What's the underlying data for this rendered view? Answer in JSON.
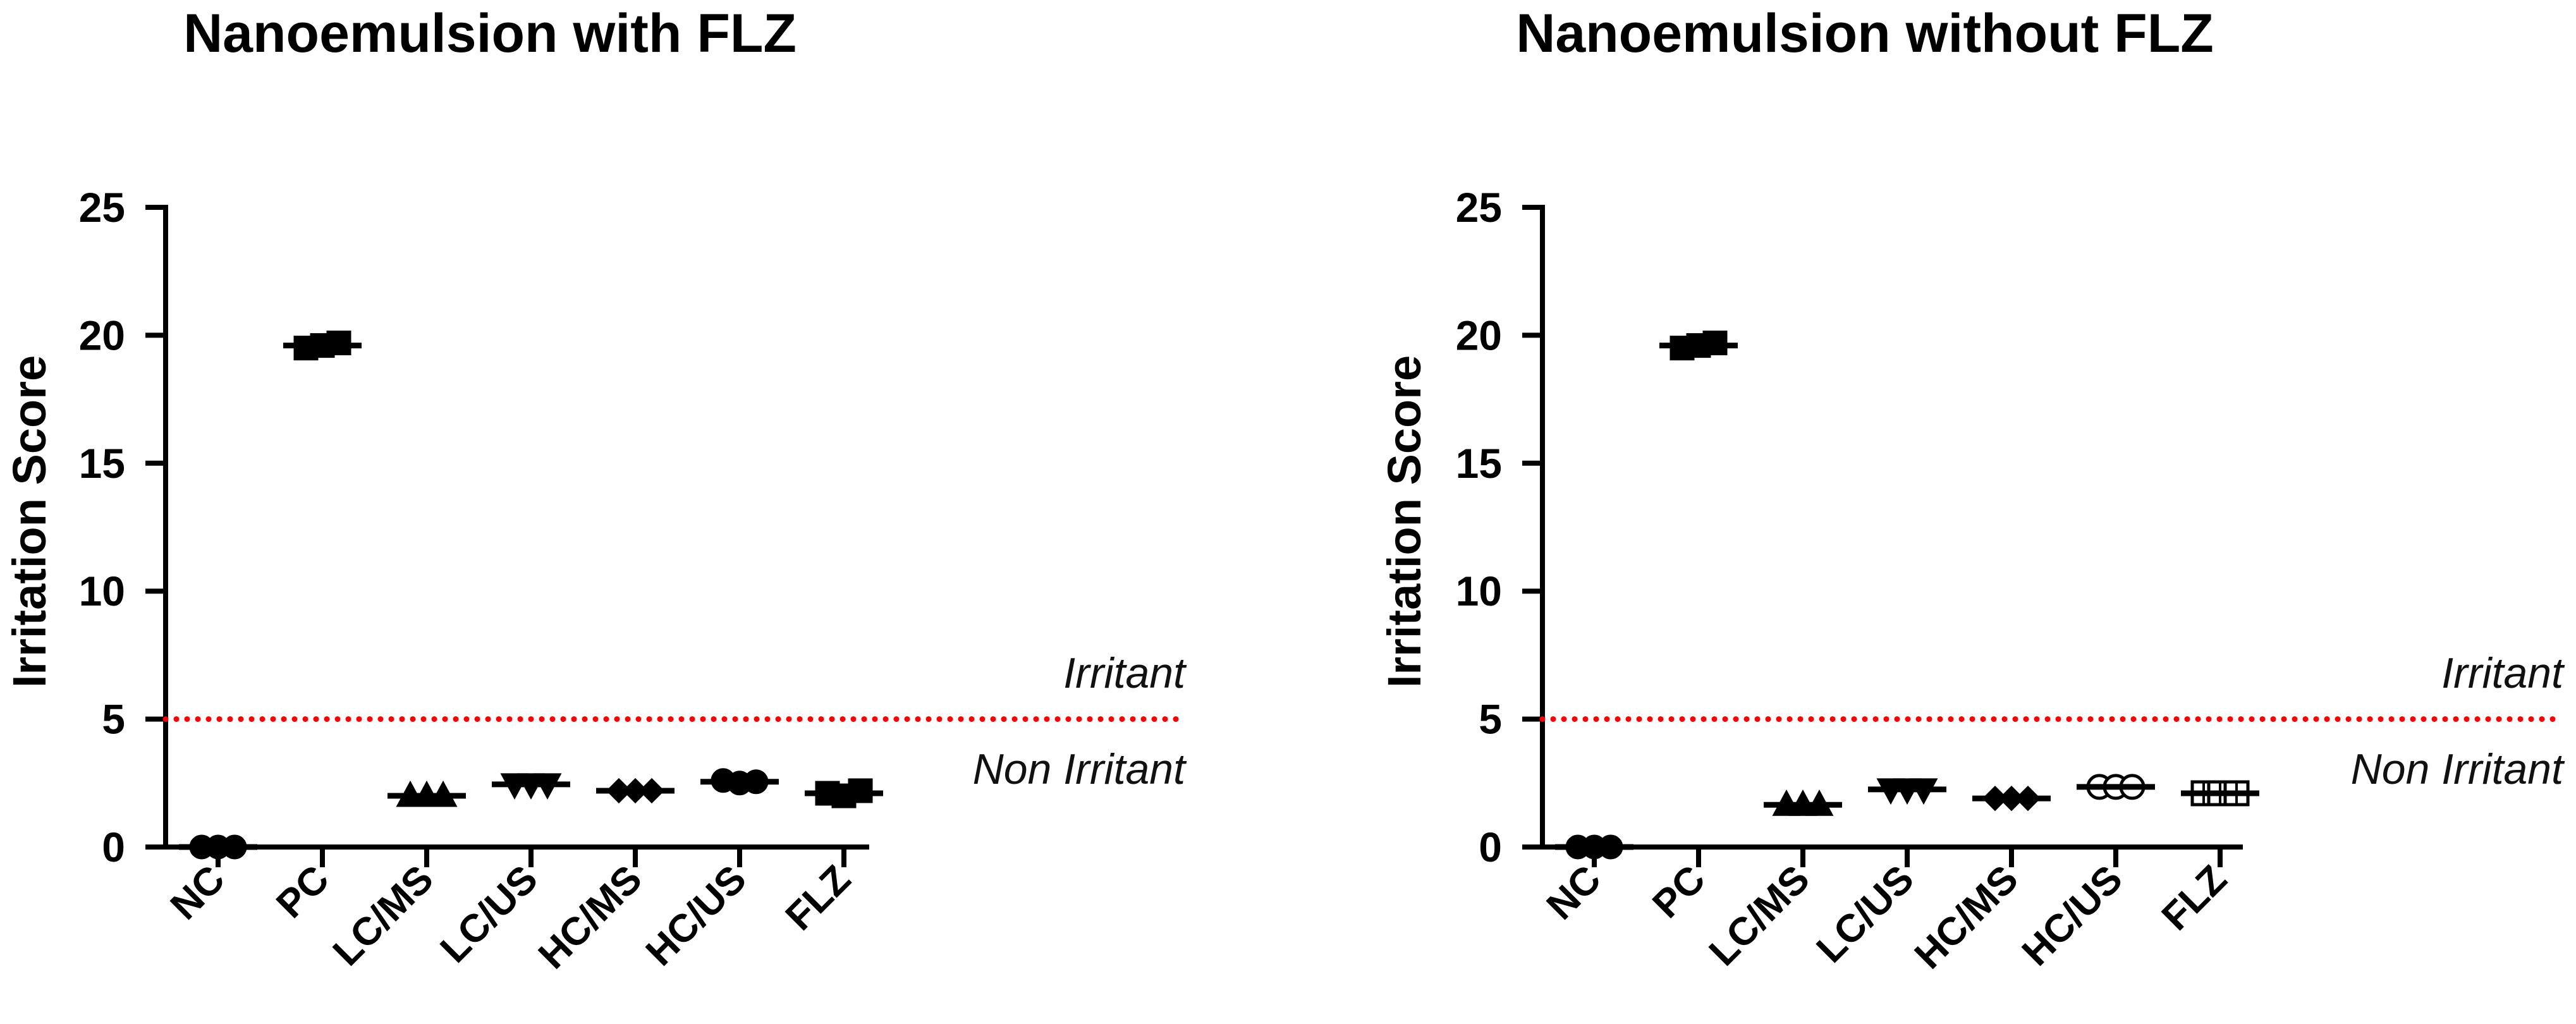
{
  "chart_data": [
    {
      "type": "scatter",
      "title": "Nanoemulsion with FLZ",
      "xlabel": "",
      "ylabel": "Irritation Score",
      "ylim": [
        0,
        25
      ],
      "yticks": [
        "0",
        "5",
        "10",
        "15",
        "20",
        "25"
      ],
      "categories": [
        "NC",
        "PC",
        "LC/MS",
        "LC/US",
        "HC/MS",
        "HC/US",
        "FLZ"
      ],
      "markers": [
        "circle",
        "square",
        "triangle",
        "triangle-down",
        "diamond",
        "circle",
        "square"
      ],
      "filled": [
        true,
        true,
        true,
        true,
        true,
        true,
        true
      ],
      "series": [
        {
          "name": "NC",
          "values": [
            0,
            0,
            0
          ]
        },
        {
          "name": "PC",
          "values": [
            19.5,
            19.6,
            19.7
          ]
        },
        {
          "name": "LC/MS",
          "values": [
            2.0,
            2.0,
            2.0
          ]
        },
        {
          "name": "LC/US",
          "values": [
            2.45,
            2.45,
            2.45
          ]
        },
        {
          "name": "HC/MS",
          "values": [
            2.2,
            2.2,
            2.2
          ]
        },
        {
          "name": "HC/US",
          "values": [
            2.6,
            2.5,
            2.55
          ]
        },
        {
          "name": "FLZ",
          "values": [
            2.1,
            2.0,
            2.2
          ]
        }
      ],
      "means": [
        0,
        19.6,
        2.0,
        2.45,
        2.2,
        2.55,
        2.1
      ],
      "threshold": {
        "value": 5,
        "label_above": "Irritant",
        "label_below": "Non Irritant",
        "color": "#ff0000"
      }
    },
    {
      "type": "scatter",
      "title": "Nanoemulsion without FLZ",
      "xlabel": "",
      "ylabel": "Irritation Score",
      "ylim": [
        0,
        25
      ],
      "yticks": [
        "0",
        "5",
        "10",
        "15",
        "20",
        "25"
      ],
      "categories": [
        "NC",
        "PC",
        "LC/MS",
        "LC/US",
        "HC/MS",
        "HC/US",
        "FLZ"
      ],
      "markers": [
        "circle",
        "square",
        "triangle",
        "triangle-down",
        "diamond",
        "circle",
        "square"
      ],
      "filled": [
        true,
        true,
        true,
        true,
        true,
        false,
        false
      ],
      "series": [
        {
          "name": "NC",
          "values": [
            0,
            0,
            0
          ]
        },
        {
          "name": "PC",
          "values": [
            19.5,
            19.6,
            19.7
          ]
        },
        {
          "name": "LC/MS",
          "values": [
            1.65,
            1.65,
            1.65
          ]
        },
        {
          "name": "LC/US",
          "values": [
            2.25,
            2.25,
            2.25
          ]
        },
        {
          "name": "HC/MS",
          "values": [
            1.9,
            1.9,
            1.9
          ]
        },
        {
          "name": "HC/US",
          "values": [
            2.35,
            2.35,
            2.35
          ]
        },
        {
          "name": "FLZ",
          "values": [
            2.1,
            2.1,
            2.1
          ]
        }
      ],
      "means": [
        0,
        19.6,
        1.65,
        2.25,
        1.9,
        2.35,
        2.1
      ],
      "threshold": {
        "value": 5,
        "label_above": "Irritant",
        "label_below": "Non Irritant",
        "color": "#ff0000"
      }
    }
  ]
}
